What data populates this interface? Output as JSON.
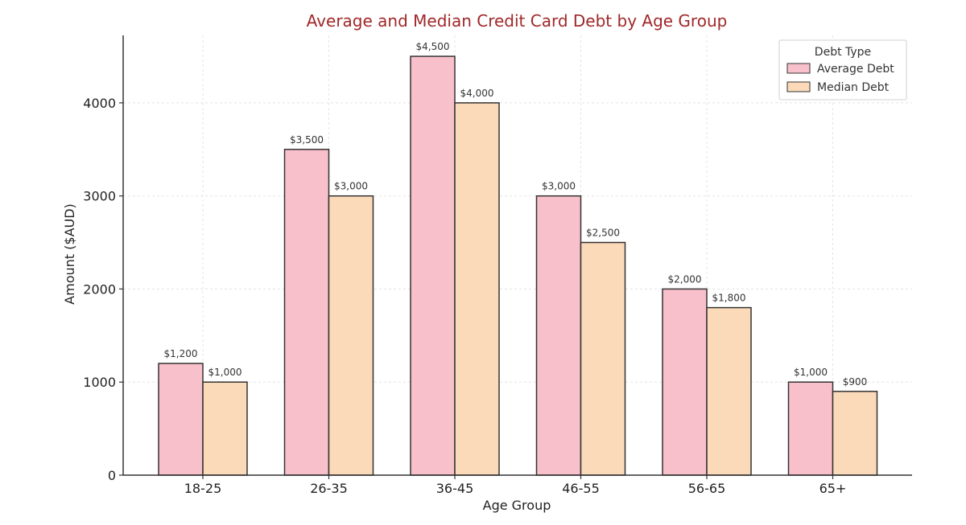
{
  "chart_data": {
    "type": "bar",
    "title": "Average and Median Credit Card Debt by Age Group",
    "xlabel": "Age Group",
    "ylabel": "Amount ($AUD)",
    "categories": [
      "18-25",
      "26-35",
      "36-45",
      "46-55",
      "56-65",
      "65+"
    ],
    "series": [
      {
        "name": "Average Debt",
        "values": [
          1200,
          3500,
          4500,
          3000,
          2000,
          1000
        ],
        "labels": [
          "$1,200",
          "$3,500",
          "$4,500",
          "$3,000",
          "$2,000",
          "$1,000"
        ],
        "color": "#f8c0cb"
      },
      {
        "name": "Median Debt",
        "values": [
          1000,
          3000,
          4000,
          2500,
          1800,
          900
        ],
        "labels": [
          "$1,000",
          "$3,000",
          "$4,000",
          "$2,500",
          "$1,800",
          "$900"
        ],
        "color": "#fbdab9"
      }
    ],
    "yticks": [
      0,
      1000,
      2000,
      3000,
      4000
    ],
    "ylim": [
      0,
      4725
    ],
    "grid": true,
    "legend": {
      "title": "Debt Type",
      "placement": "top-right"
    },
    "title_color": "#a0282a"
  }
}
